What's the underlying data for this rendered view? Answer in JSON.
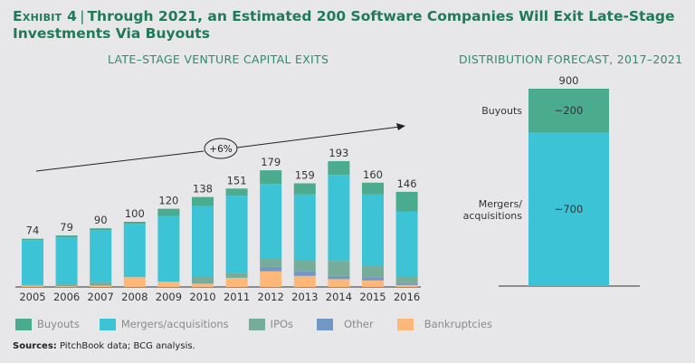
{
  "title": {
    "exhibit": "Exhibit 4",
    "text": "Through 2021, an Estimated 200 Software Companies Will Exit Late-Stage Investments Via Buyouts"
  },
  "sources": {
    "label": "Sources:",
    "text": "PitchBook data; BCG analysis."
  },
  "colors": {
    "Buyouts": "#4aab8f",
    "Mergers/acquisitions": "#3cc3d6",
    "IPOs": "#76ad9a",
    "Other": "#7397c4",
    "Bankruptcies": "#fdb879"
  },
  "chart_data": [
    {
      "type": "bar",
      "stacked": true,
      "title": "LATE–STAGE VENTURE CAPITAL EXITS",
      "xlabel": "",
      "ylabel": "",
      "grid": false,
      "legend": "bottom",
      "categories": [
        "2005",
        "2006",
        "2007",
        "2008",
        "2009",
        "2010",
        "2011",
        "2012",
        "2013",
        "2014",
        "2015",
        "2016"
      ],
      "totals": [
        74,
        79,
        90,
        100,
        120,
        138,
        151,
        179,
        159,
        193,
        160,
        146
      ],
      "series": [
        {
          "name": "Bankruptcies",
          "values": [
            2,
            1,
            2,
            15,
            8,
            5,
            14,
            24,
            17,
            12,
            10,
            3
          ]
        },
        {
          "name": "Other",
          "values": [
            0,
            0,
            0,
            0,
            0,
            0,
            0,
            7,
            7,
            5,
            5,
            3
          ]
        },
        {
          "name": "IPOs",
          "values": [
            1,
            3,
            6,
            0,
            0,
            11,
            8,
            12,
            17,
            23,
            17,
            10
          ]
        },
        {
          "name": "Mergers/acquisitions",
          "values": [
            69,
            72,
            79,
            82,
            101,
            108,
            118,
            115,
            101,
            132,
            110,
            100
          ]
        },
        {
          "name": "Buyouts",
          "values": [
            2,
            3,
            3,
            3,
            11,
            14,
            11,
            21,
            17,
            21,
            18,
            30
          ]
        }
      ],
      "annotation": "+6%",
      "ylim": [
        0,
        200
      ]
    },
    {
      "type": "bar",
      "stacked": true,
      "title": "DISTRIBUTION FORECAST, 2017–2021",
      "categories": [
        "2017–2021"
      ],
      "total": 900,
      "total_label": "900",
      "series": [
        {
          "name": "Mergers/acquisitions",
          "label": "Mergers/ acquisitions",
          "value": 700,
          "value_label": "~700"
        },
        {
          "name": "Buyouts",
          "label": "Buyouts",
          "value": 200,
          "value_label": "~200"
        }
      ]
    }
  ],
  "legend": [
    {
      "name": "Buyouts"
    },
    {
      "name": "Mergers/acquisitions"
    },
    {
      "name": "IPOs"
    },
    {
      "name": "Other"
    },
    {
      "name": "Bankruptcies"
    }
  ]
}
